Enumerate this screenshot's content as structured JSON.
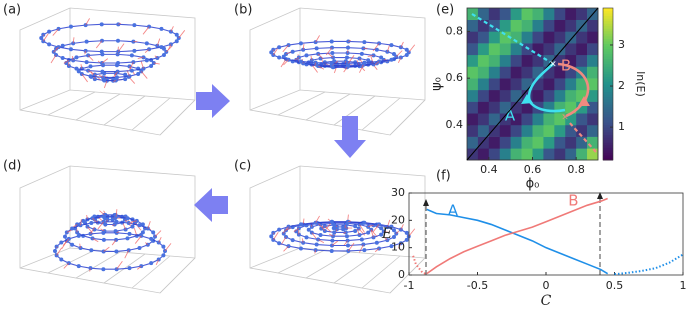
{
  "panel_labels": [
    "(a)",
    "(b)",
    "(c)",
    "(d)",
    "(e)",
    "(f)"
  ],
  "chart_data": [
    {
      "type": "heatmap",
      "x_label": "ϕ₀",
      "y_label": "ψ₀",
      "x": [
        0.325,
        0.375,
        0.425,
        0.475,
        0.525,
        0.575,
        0.625,
        0.675,
        0.725,
        0.775,
        0.825,
        0.875
      ],
      "y": [
        0.275,
        0.325,
        0.375,
        0.425,
        0.475,
        0.525,
        0.575,
        0.625,
        0.675,
        0.725,
        0.775,
        0.825,
        0.875
      ],
      "z": [
        [
          0.8,
          0.5,
          1.0,
          1.8,
          2.6,
          2.9,
          2.2,
          1.2,
          0.8,
          1.4,
          2.6,
          3.3
        ],
        [
          1.4,
          0.8,
          0.5,
          1.0,
          1.8,
          2.6,
          2.9,
          2.2,
          1.2,
          0.8,
          1.4,
          2.6
        ],
        [
          0.8,
          1.4,
          0.8,
          0.5,
          1.0,
          1.8,
          2.6,
          2.9,
          2.2,
          1.2,
          0.8,
          1.4
        ],
        [
          0.5,
          0.8,
          1.4,
          0.8,
          0.5,
          1.0,
          1.8,
          2.6,
          2.9,
          2.2,
          1.2,
          0.8
        ],
        [
          1.0,
          0.5,
          0.8,
          1.4,
          0.8,
          0.5,
          1.0,
          1.8,
          2.6,
          2.9,
          2.2,
          1.2
        ],
        [
          1.8,
          1.0,
          0.5,
          0.8,
          1.4,
          0.8,
          0.5,
          1.0,
          1.8,
          2.6,
          2.9,
          2.2
        ],
        [
          2.6,
          1.8,
          1.0,
          0.5,
          0.8,
          1.4,
          0.8,
          0.5,
          1.0,
          1.8,
          2.6,
          2.9
        ],
        [
          2.9,
          2.6,
          1.8,
          1.0,
          0.5,
          0.8,
          1.4,
          0.8,
          0.5,
          1.0,
          1.8,
          2.6
        ],
        [
          2.2,
          2.9,
          2.6,
          1.8,
          1.0,
          0.5,
          0.8,
          1.4,
          0.8,
          0.5,
          1.0,
          1.8
        ],
        [
          1.2,
          2.2,
          2.9,
          2.6,
          1.8,
          1.0,
          0.5,
          0.8,
          1.4,
          0.8,
          0.5,
          1.0
        ],
        [
          0.8,
          1.2,
          2.2,
          2.9,
          2.6,
          1.8,
          1.0,
          0.5,
          0.8,
          1.4,
          0.8,
          0.5
        ],
        [
          1.4,
          0.8,
          1.2,
          2.2,
          2.9,
          2.6,
          1.8,
          1.0,
          0.5,
          0.8,
          1.4,
          0.8
        ],
        [
          2.6,
          1.4,
          0.8,
          1.2,
          2.2,
          2.9,
          2.6,
          1.8,
          1.0,
          0.5,
          0.8,
          1.4
        ]
      ],
      "xlim": [
        0.3,
        0.9
      ],
      "ylim": [
        0.25,
        0.9
      ],
      "xticks": [
        0.4,
        0.6,
        0.8
      ],
      "yticks": [
        0.4,
        0.6,
        0.8
      ],
      "colorbar": {
        "label": "ln(E)",
        "lim": [
          0.2,
          3.9
        ],
        "ticks": [
          1,
          2,
          3
        ],
        "colormap": "viridis"
      },
      "annotations": [
        {
          "text": "A",
          "color": "#3fe0ef"
        },
        {
          "text": "B",
          "color": "#f08a80"
        }
      ]
    },
    {
      "type": "line",
      "x_label": "C",
      "y_label": "E",
      "xlim": [
        -1,
        1
      ],
      "ylim": [
        0,
        30
      ],
      "xticks": [
        -1,
        -0.5,
        0,
        0.5,
        1
      ],
      "yticks": [
        0,
        10,
        20,
        30
      ],
      "series": [
        {
          "name": "A",
          "color": "#1f8fe8",
          "style": "solid",
          "x": [
            -0.87,
            -0.8,
            -0.7,
            -0.6,
            -0.5,
            -0.4,
            -0.3,
            -0.2,
            -0.1,
            0,
            0.1,
            0.2,
            0.3,
            0.4,
            0.45
          ],
          "values": [
            24,
            22.5,
            22,
            21,
            20,
            18.5,
            16.5,
            14.5,
            12.5,
            10,
            8,
            6,
            4,
            2,
            0.5
          ]
        },
        {
          "color": "#1f8fe8",
          "style": "dotted",
          "x": [
            0.5,
            0.6,
            0.7,
            0.8,
            0.9,
            1
          ],
          "values": [
            0.3,
            0.8,
            1.5,
            2.5,
            4.5,
            7.5
          ]
        },
        {
          "name": "B",
          "color": "#f07a78",
          "style": "solid",
          "x": [
            -0.87,
            -0.8,
            -0.7,
            -0.6,
            -0.5,
            -0.4,
            -0.3,
            -0.2,
            -0.1,
            0,
            0.1,
            0.2,
            0.3,
            0.4,
            0.45
          ],
          "values": [
            0.5,
            3,
            6,
            8.5,
            10.5,
            12.5,
            14.5,
            16,
            17.5,
            19.5,
            21.5,
            23.5,
            25.5,
            27,
            28
          ]
        },
        {
          "color": "#f07a78",
          "style": "dotted",
          "x": [
            -0.97,
            -0.95,
            -0.92,
            -0.9,
            -0.87
          ],
          "values": [
            7,
            4,
            2,
            0.8,
            0.3
          ]
        }
      ]
    }
  ]
}
